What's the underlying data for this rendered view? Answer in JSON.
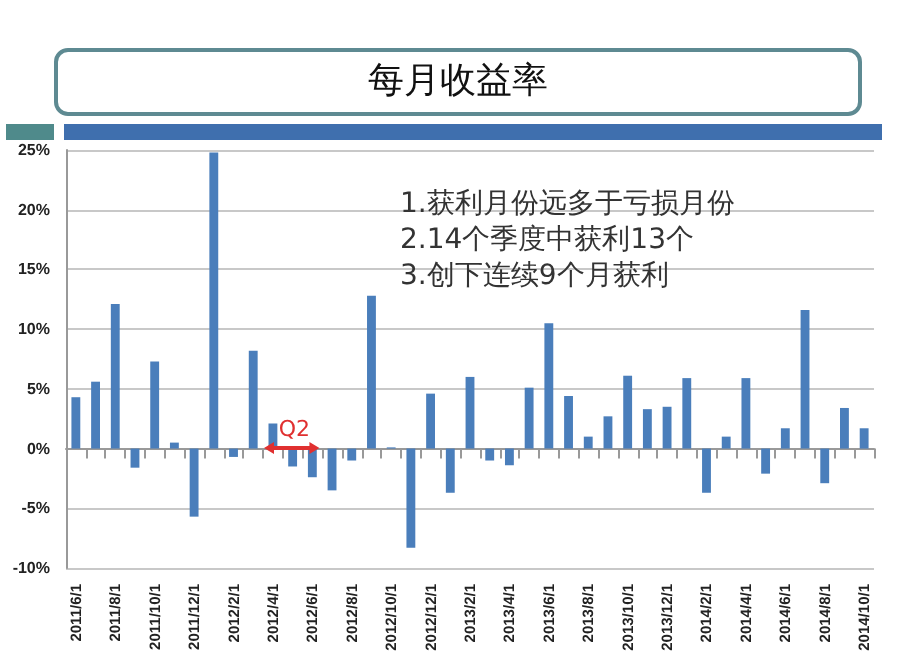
{
  "chart_data": {
    "type": "bar",
    "title": "每月收益率",
    "categories": [
      "2011/6/1",
      null,
      "2011/8/1",
      null,
      "2011/10/1",
      null,
      "2011/12/1",
      null,
      "2012/2/1",
      null,
      "2012/4/1",
      null,
      "2012/6/1",
      null,
      "2012/8/1",
      null,
      "2012/10/1",
      null,
      "2012/12/1",
      null,
      "2013/2/1",
      null,
      "2013/4/1",
      null,
      "2013/6/1",
      null,
      "2013/8/1",
      null,
      "2013/10/1",
      null,
      "2013/12/1",
      null,
      "2014/2/1",
      null,
      "2014/4/1",
      null,
      "2014/6/1",
      null,
      "2014/8/1",
      null,
      "2014/10/1"
    ],
    "values": [
      4.3,
      5.6,
      12.1,
      -1.6,
      7.3,
      0.5,
      -5.7,
      24.8,
      -0.7,
      8.2,
      2.1,
      -1.5,
      -2.4,
      -3.5,
      -1.0,
      12.8,
      0.1,
      -8.3,
      4.6,
      -3.7,
      6.0,
      -1.0,
      -1.4,
      5.1,
      10.5,
      4.4,
      1.0,
      2.7,
      6.1,
      3.3,
      3.5,
      5.9,
      -3.7,
      1.0,
      5.9,
      -2.1,
      1.7,
      11.6,
      -2.9,
      3.4,
      1.7
    ],
    "color": "#4a7ebb",
    "ylim": [
      -10,
      25
    ],
    "yticks": [
      {
        "value": -10,
        "label": "-10%"
      },
      {
        "value": -5,
        "label": "-5%"
      },
      {
        "value": 0,
        "label": "0%"
      },
      {
        "value": 5,
        "label": "5%"
      },
      {
        "value": 10,
        "label": "10%"
      },
      {
        "value": 15,
        "label": "15%"
      },
      {
        "value": 20,
        "label": "20%"
      },
      {
        "value": 25,
        "label": "25%"
      }
    ],
    "grid": "y",
    "annotations": [
      "1.获利月份远多于亏损月份",
      "2.14个季度中获利13个",
      "3.创下连续9个月获利",
      "Q2"
    ]
  }
}
